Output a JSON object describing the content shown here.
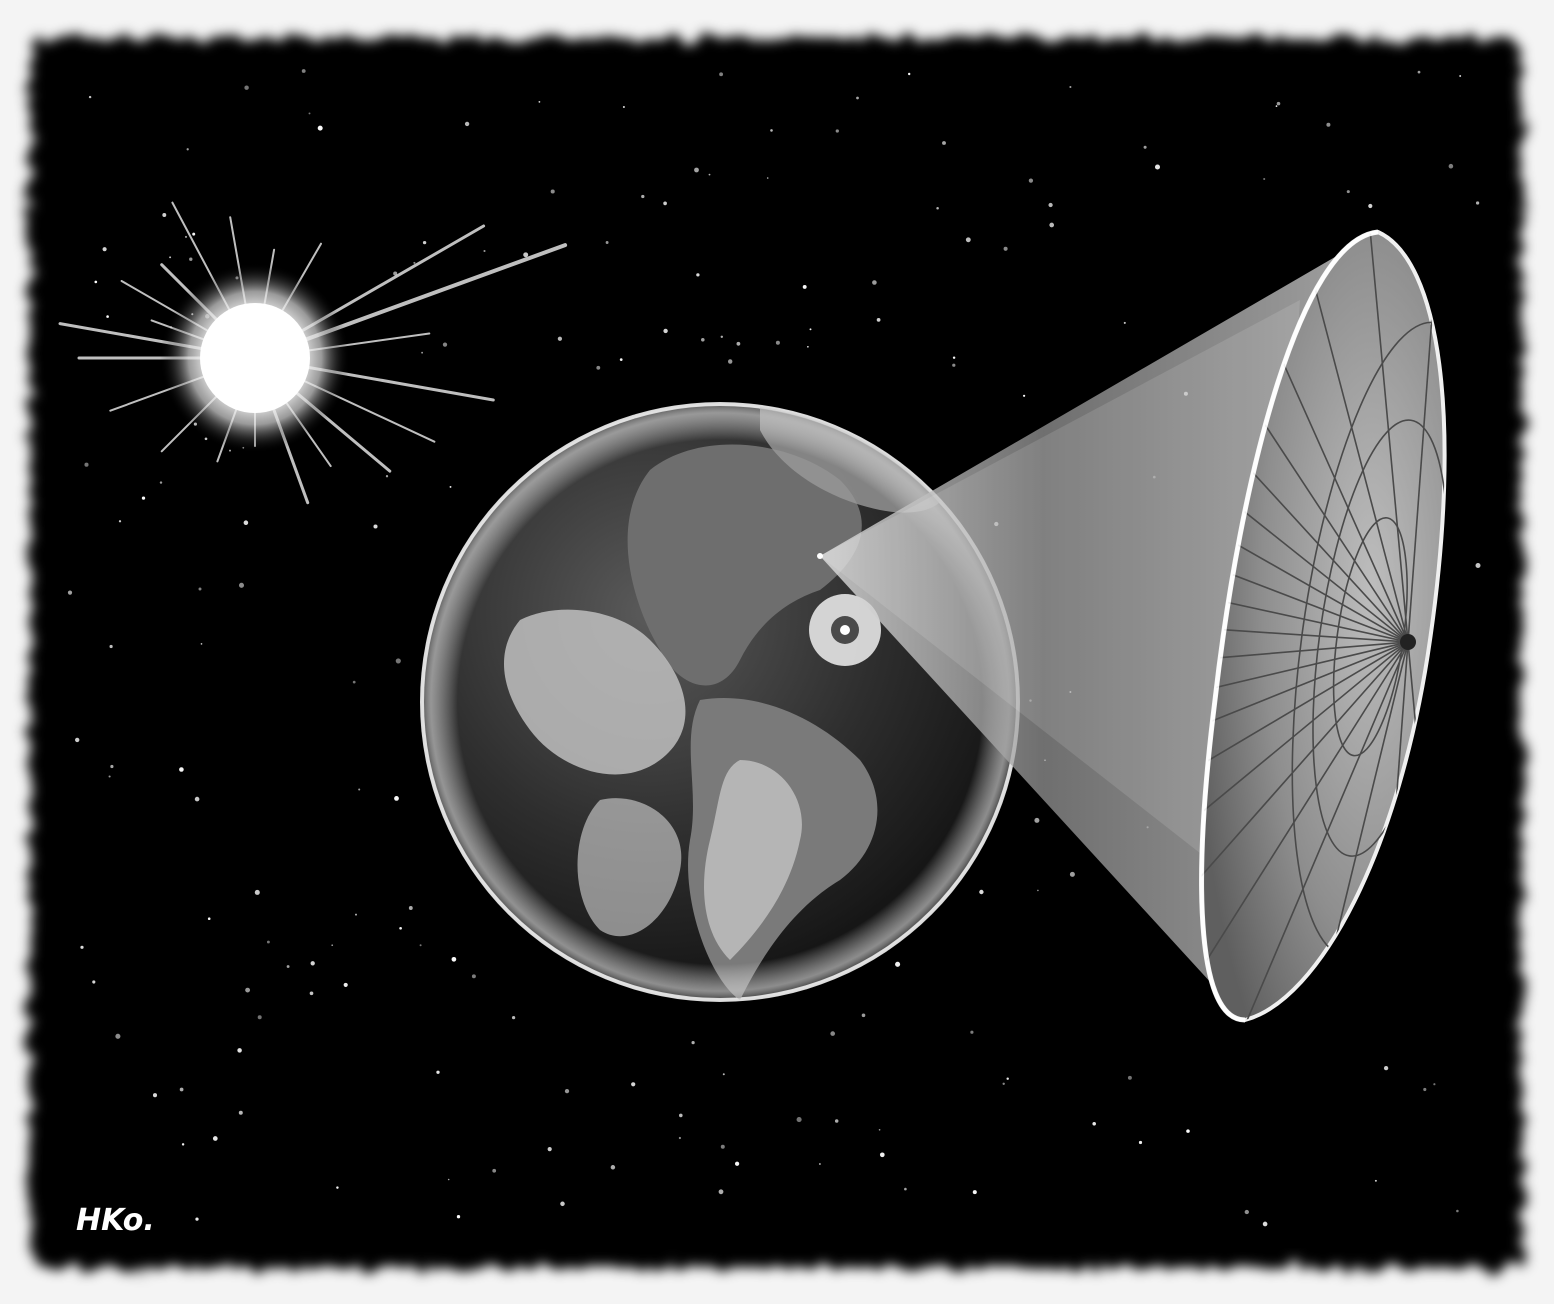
{
  "artwork": {
    "signature": "HKo."
  },
  "palette": {
    "frame": "#f4f4f4",
    "space": "#000000",
    "sun": "#ffffff",
    "earth_dark": "#2a2a2a",
    "earth_light": "#d8d8d8",
    "beam": "#bdbdbd",
    "dish": "#a8a8a8"
  },
  "icons": {
    "sun": "sun-starburst-icon",
    "planet": "earth-globe-icon",
    "reflector": "space-mirror-dish-icon"
  }
}
